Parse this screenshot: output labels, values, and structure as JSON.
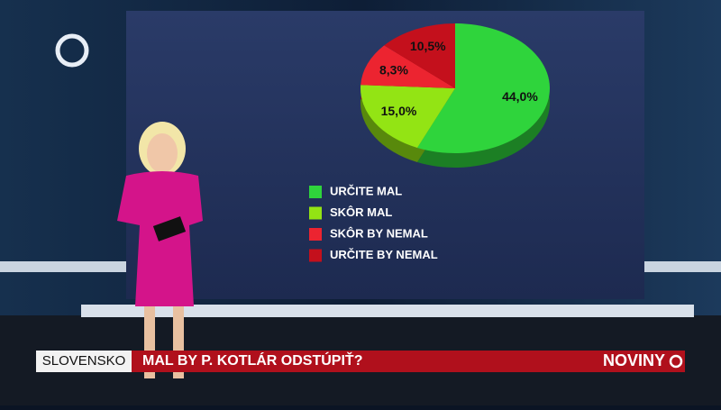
{
  "chart_data": {
    "type": "pie",
    "categories": [
      "URČITE MAL",
      "SKÔR MAL",
      "SKÔR BY NEMAL",
      "URČITE BY NEMAL"
    ],
    "values": [
      44.0,
      15.0,
      8.3,
      10.5
    ],
    "value_labels": [
      "44,0%",
      "15,0%",
      "8,3%",
      "10,5%"
    ],
    "colors": [
      "#2fd43c",
      "#93e414",
      "#ec2430",
      "#c4101c"
    ]
  },
  "ticker": {
    "section": "SLOVENSKO",
    "headline": "MAL BY P. KOTLÁR ODSTÚPIŤ?",
    "brand": "NOVINY"
  }
}
